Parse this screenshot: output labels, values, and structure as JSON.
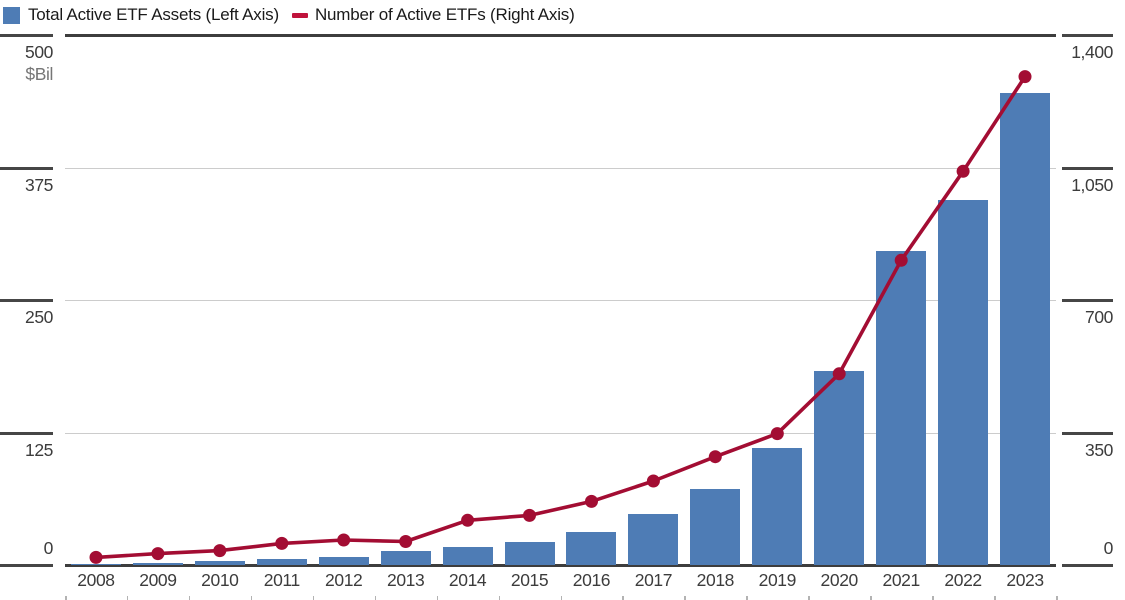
{
  "legend": {
    "items": [
      {
        "label": "Total Active ETF Assets (Left Axis)",
        "marker": "square",
        "color": "#4e7cb5"
      },
      {
        "label": "Number of Active ETFs (Right Axis)",
        "marker": "dash",
        "color": "#c0133c"
      }
    ]
  },
  "chart_data": {
    "type": "combo-bar-line",
    "categories": [
      "2008",
      "2009",
      "2010",
      "2011",
      "2012",
      "2013",
      "2014",
      "2015",
      "2016",
      "2017",
      "2018",
      "2019",
      "2020",
      "2021",
      "2022",
      "2023"
    ],
    "series": [
      {
        "name": "Total Active ETF Assets (Left Axis)",
        "type": "bar",
        "axis": "left",
        "color": "#4e7cb5",
        "values": [
          1,
          2,
          4,
          6,
          8,
          13,
          17,
          22,
          31,
          48,
          72,
          110,
          183,
          296,
          344,
          445
        ]
      },
      {
        "name": "Number of Active ETFs (Right Axis)",
        "type": "line",
        "axis": "right",
        "color": "#a30d33",
        "values": [
          20,
          30,
          38,
          57,
          66,
          62,
          118,
          131,
          168,
          222,
          286,
          347,
          505,
          805,
          1040,
          1290
        ]
      }
    ],
    "left_axis": {
      "unit_label": "$Bil",
      "min": 0,
      "max": 500,
      "ticks": [
        0,
        125,
        250,
        375,
        500
      ],
      "tick_labels": [
        "0",
        "125",
        "250",
        "375",
        "500"
      ]
    },
    "right_axis": {
      "min": 0,
      "max": 1400,
      "ticks": [
        0,
        350,
        700,
        1050,
        1400
      ],
      "tick_labels": [
        "0",
        "350",
        "700",
        "1,050",
        "1,400"
      ]
    },
    "grid": true,
    "legend_position": "top-left"
  },
  "colors": {
    "bar": "#4e7cb5",
    "line": "#a30d33",
    "legend_dash": "#c0133c",
    "grid": "#cccccc",
    "axis_rule": "#3d3d3d",
    "tick_label": "#3c3c3c",
    "unit_label": "#767676"
  }
}
